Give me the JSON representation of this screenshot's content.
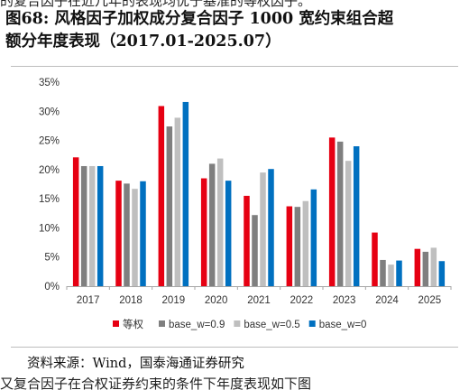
{
  "top_cut_text": "的复合因子在近几年的表现均优于基准的等权因子。",
  "figure": {
    "title_line1": "图68:  风格因子加权成分复合因子 1000 宽约束组合超",
    "title_line2": "额分年度表现（2017.01-2025.07）"
  },
  "source_note": "资料来源：Wind，国泰海通证券研究",
  "bottom_cut_text": "又复合因子在合权证券约束的条件下年度表现如下图",
  "chart_data": {
    "type": "bar",
    "categories": [
      "2017",
      "2018",
      "2019",
      "2020",
      "2021",
      "2022",
      "2023",
      "2024",
      "2025"
    ],
    "series": [
      {
        "name": "等权",
        "color": "#e60012",
        "values": [
          22.1,
          18.1,
          30.9,
          18.5,
          15.5,
          13.7,
          25.5,
          9.2,
          6.4
        ]
      },
      {
        "name": "base_w=0.9",
        "color": "#7f7f7f",
        "values": [
          20.6,
          17.6,
          27.4,
          21.0,
          12.2,
          13.6,
          24.8,
          4.5,
          5.9
        ]
      },
      {
        "name": "base_w=0.5",
        "color": "#bfbfbf",
        "values": [
          20.6,
          16.7,
          28.9,
          21.9,
          19.5,
          14.6,
          21.5,
          3.7,
          6.6
        ]
      },
      {
        "name": "base_w=0",
        "color": "#0070c0",
        "values": [
          20.6,
          18.0,
          31.6,
          18.1,
          20.1,
          16.6,
          24.0,
          4.4,
          4.3
        ]
      }
    ],
    "ylim": [
      0,
      35
    ],
    "yticks": [
      0,
      5,
      10,
      15,
      20,
      25,
      30,
      35
    ],
    "ytick_labels": [
      "0%",
      "5%",
      "10%",
      "15%",
      "20%",
      "25%",
      "30%",
      "35%"
    ],
    "legend_position": "bottom"
  }
}
